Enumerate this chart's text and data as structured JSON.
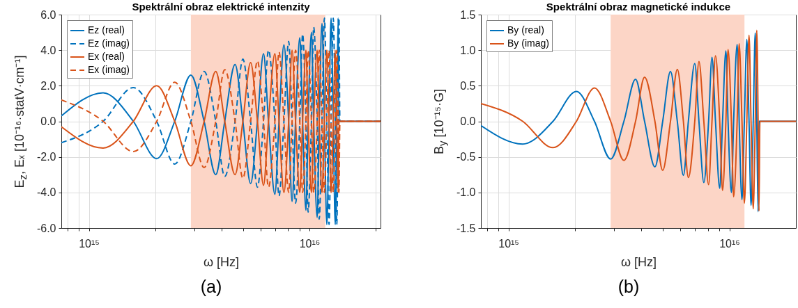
{
  "chart_data": [
    {
      "type": "line",
      "title": "Spektrální obraz elektrické intenzity",
      "xlabel": "ω [Hz]",
      "ylabel": "E$_{z}$, Eₓ [10⁻¹⁶·statV·cm⁻¹]",
      "annotations": [
        "(a)"
      ],
      "x": [
        750000000000000.0,
        1160000000000000.0,
        1590000000000000.0,
        2030000000000000.0,
        2450000000000000.0,
        2900000000000000.0,
        3330000000000000.0,
        3760000000000000.0,
        4130000000000000.0,
        4600000000000000.0,
        4990000000000000.0,
        5410000000000000.0,
        5810000000000000.0,
        6190000000000000.0,
        6520000000000000.0,
        6970000000000000.0,
        7280000000000000.0,
        7660000000000000.0,
        8050000000000000.0,
        8340000000000000.0,
        8650000000000000.0,
        9040000000000000.0,
        9310000000000000.0,
        9640000000000000.0,
        9860000000000000.0,
        1.021e+16,
        1.045e+16,
        1.084e+16,
        1.107e+16,
        1.14e+16,
        1.169e+16,
        1.199e+16,
        1.227e+16,
        1.253e+16,
        1.282e+16,
        1.309e+16,
        1.33e+16,
        1.349e+16,
        1.361e+16,
        1.374e+16,
        2.1e+16
      ],
      "series": [
        {
          "name": "Ez (real)",
          "color": "#0072bd",
          "line_style": "solid",
          "values": [
            0.3,
            1.6,
            0,
            -2.1,
            0,
            2.6,
            0,
            -3.0,
            0,
            3.2,
            0,
            -3.5,
            0,
            3.8,
            0,
            -4.1,
            0,
            4.3,
            0,
            -4.5,
            0,
            4.7,
            0,
            -5.0,
            0,
            5.0,
            0,
            -5.4,
            0,
            5.5,
            0,
            -5.8,
            0,
            5.8,
            0,
            -5.8,
            0,
            5.8,
            0,
            0,
            0
          ]
        },
        {
          "name": "Ez (imag)",
          "color": "#0072bd",
          "line_style": "dashed",
          "values": [
            -1.2,
            0,
            1.9,
            0,
            -2.4,
            0,
            2.8,
            0,
            -3.1,
            0,
            3.5,
            0,
            -3.7,
            0,
            4.0,
            0,
            -4.2,
            0,
            4.5,
            0,
            -4.6,
            0,
            4.9,
            0,
            -5.1,
            0,
            5.3,
            0,
            -5.5,
            0,
            5.8,
            0,
            -5.8,
            0,
            5.8,
            0,
            -5.8,
            0,
            5.8,
            0,
            0
          ]
        },
        {
          "name": "Ex (real)",
          "color": "#d95319",
          "line_style": "solid",
          "values": [
            -0.3,
            -1.5,
            0,
            2.0,
            0,
            -2.5,
            0,
            2.8,
            0,
            -3.0,
            0,
            3.3,
            0,
            -3.6,
            0,
            3.8,
            0,
            -4.0,
            0,
            4.0,
            0,
            -4.0,
            0,
            4.0,
            0,
            -4.0,
            0,
            4.0,
            0,
            -4.0,
            0,
            4.0,
            0,
            -4.0,
            0,
            4.0,
            0,
            -4.0,
            0,
            0,
            0
          ]
        },
        {
          "name": "Ex (imag)",
          "color": "#d95319",
          "line_style": "dashed",
          "values": [
            1.2,
            0,
            -1.7,
            0,
            2.2,
            0,
            -2.6,
            0,
            2.9,
            0,
            -3.2,
            0,
            3.4,
            0,
            -3.7,
            0,
            3.9,
            0,
            -4.0,
            0,
            4.0,
            0,
            -4.0,
            0,
            4.0,
            0,
            -4.0,
            0,
            4.0,
            0,
            -4.0,
            0,
            4.0,
            0,
            -4.0,
            0,
            4.0,
            0,
            -4.0,
            0,
            0
          ]
        }
      ],
      "xlim": [
        750000000000000.0,
        2.1e+16
      ],
      "ylim": [
        -6,
        6
      ],
      "xticks": [
        {
          "value": 800000000000000.0,
          "label": null
        },
        {
          "value": 900000000000000.0,
          "label": null
        },
        {
          "value": 1000000000000000.0,
          "label": "10¹⁵"
        },
        {
          "value": 2000000000000000.0,
          "label": null
        },
        {
          "value": 3000000000000000.0,
          "label": null
        },
        {
          "value": 4000000000000000.0,
          "label": null
        },
        {
          "value": 5000000000000000.0,
          "label": null
        },
        {
          "value": 6000000000000000.0,
          "label": null
        },
        {
          "value": 7000000000000000.0,
          "label": null
        },
        {
          "value": 8000000000000000.0,
          "label": null
        },
        {
          "value": 9000000000000000.0,
          "label": null
        },
        {
          "value": 1e+16,
          "label": "10¹⁶"
        },
        {
          "value": 2e+16,
          "label": null
        }
      ],
      "yticks": [
        {
          "value": -6,
          "label": "-6.0"
        },
        {
          "value": -4,
          "label": "-4.0"
        },
        {
          "value": -2,
          "label": "-2.0"
        },
        {
          "value": 0,
          "label": "0.0"
        },
        {
          "value": 2,
          "label": "2.0"
        },
        {
          "value": 4,
          "label": "4.0"
        },
        {
          "value": 6,
          "label": "6.0"
        }
      ],
      "bands": [
        {
          "axis": "x",
          "from": 2900000000000000.0,
          "to": 1.18e+16,
          "color": "#fcd5c6"
        }
      ],
      "log": "x",
      "grid": true,
      "legend": "top left"
    },
    {
      "type": "line",
      "title": "Spektrální obraz magnetické indukce",
      "xlabel": "ω [Hz]",
      "ylabel": "B$_{y}$ [10⁻¹⁵·G]",
      "annotations": [
        "(b)"
      ],
      "x": [
        750000000000000.0,
        1160000000000000.0,
        1590000000000000.0,
        2030000000000000.0,
        2450000000000000.0,
        2900000000000000.0,
        3330000000000000.0,
        3760000000000000.0,
        4130000000000000.0,
        4600000000000000.0,
        4990000000000000.0,
        5410000000000000.0,
        5810000000000000.0,
        6190000000000000.0,
        6520000000000000.0,
        6970000000000000.0,
        7280000000000000.0,
        7660000000000000.0,
        8050000000000000.0,
        8340000000000000.0,
        8650000000000000.0,
        9040000000000000.0,
        9310000000000000.0,
        9640000000000000.0,
        9860000000000000.0,
        1.021e+16,
        1.045e+16,
        1.084e+16,
        1.107e+16,
        1.14e+16,
        1.169e+16,
        1.199e+16,
        1.227e+16,
        1.253e+16,
        1.282e+16,
        1.309e+16,
        1.33e+16,
        1.349e+16,
        1.361e+16,
        1.374e+16,
        2e+16
      ],
      "series": [
        {
          "name": "By (real)",
          "color": "#0072bd",
          "line_style": "solid",
          "values": [
            -0.06,
            -0.32,
            0,
            0.42,
            0,
            -0.53,
            0,
            0.59,
            0,
            -0.64,
            0,
            0.7,
            0,
            -0.76,
            0,
            0.81,
            0,
            -0.86,
            0,
            0.9,
            0,
            -0.94,
            0,
            0.99,
            0,
            -1.0,
            0,
            1.08,
            0,
            -1.1,
            0,
            1.15,
            0,
            -1.18,
            0,
            1.24,
            0,
            -1.27,
            0,
            0,
            0
          ]
        },
        {
          "name": "By (imag)",
          "color": "#d95319",
          "line_style": "solid",
          "values": [
            0.25,
            0,
            -0.37,
            0,
            0.47,
            0,
            -0.55,
            0,
            0.62,
            0,
            -0.69,
            0,
            0.73,
            0,
            -0.79,
            0,
            0.84,
            0,
            -0.89,
            0,
            0.92,
            0,
            -0.97,
            0,
            1.01,
            0,
            -1.06,
            0,
            1.09,
            0,
            -1.15,
            0,
            1.21,
            0,
            -1.23,
            0,
            1.28,
            0,
            -1.26,
            0,
            0
          ]
        }
      ],
      "xlim": [
        750000000000000.0,
        2e+16
      ],
      "ylim": [
        -1.5,
        1.5
      ],
      "xticks": [
        {
          "value": 800000000000000.0,
          "label": null
        },
        {
          "value": 900000000000000.0,
          "label": null
        },
        {
          "value": 1000000000000000.0,
          "label": "10¹⁵"
        },
        {
          "value": 2000000000000000.0,
          "label": null
        },
        {
          "value": 3000000000000000.0,
          "label": null
        },
        {
          "value": 4000000000000000.0,
          "label": null
        },
        {
          "value": 5000000000000000.0,
          "label": null
        },
        {
          "value": 6000000000000000.0,
          "label": null
        },
        {
          "value": 7000000000000000.0,
          "label": null
        },
        {
          "value": 8000000000000000.0,
          "label": null
        },
        {
          "value": 9000000000000000.0,
          "label": null
        },
        {
          "value": 1e+16,
          "label": "10¹⁶"
        }
      ],
      "yticks": [
        -1.5,
        {
          "value": -1,
          "label": "-1.0"
        },
        -0.5,
        {
          "value": 0,
          "label": "0.0"
        },
        0.5,
        {
          "value": 1,
          "label": "1.0"
        },
        1.5
      ],
      "bands": [
        {
          "axis": "x",
          "from": 2900000000000000.0,
          "to": 1.17e+16,
          "color": "#fcd5c6"
        }
      ],
      "log": "x",
      "grid": true,
      "legend": "top left"
    }
  ]
}
